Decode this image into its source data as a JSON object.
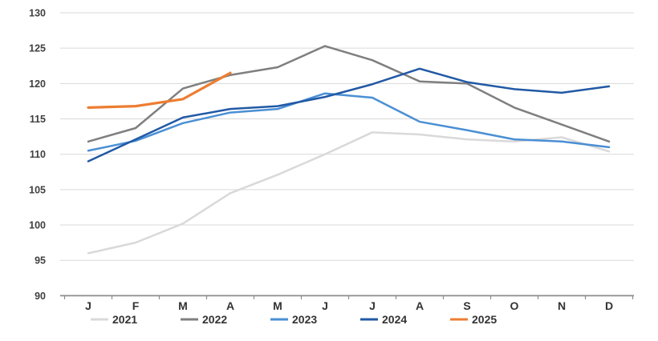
{
  "chart_data": {
    "type": "line",
    "title": "",
    "xlabel": "",
    "ylabel": "",
    "x_categories": [
      "J",
      "F",
      "M",
      "A",
      "M",
      "J",
      "J",
      "A",
      "S",
      "O",
      "N",
      "D"
    ],
    "y_ticks": [
      90,
      95,
      100,
      105,
      110,
      115,
      120,
      125,
      130
    ],
    "ylim": [
      90,
      130
    ],
    "grid": "horizontal",
    "legend_position": "bottom",
    "series": [
      {
        "name": "2021",
        "color": "#d9d9d9",
        "values": [
          96.0,
          97.5,
          100.2,
          104.5,
          107.1,
          110.0,
          113.1,
          112.8,
          112.1,
          111.8,
          112.4,
          110.4
        ]
      },
      {
        "name": "2022",
        "color": "#7f7f7f",
        "values": [
          111.8,
          113.7,
          119.3,
          121.2,
          122.3,
          125.3,
          123.3,
          120.3,
          120.0,
          116.6,
          114.2,
          111.8
        ]
      },
      {
        "name": "2023",
        "color": "#4a8fd4",
        "values": [
          110.5,
          111.9,
          114.4,
          115.9,
          116.4,
          118.6,
          118.0,
          114.6,
          113.4,
          112.1,
          111.8,
          111.0
        ]
      },
      {
        "name": "2024",
        "color": "#2159a5",
        "values": [
          109.0,
          112.1,
          115.2,
          116.4,
          116.8,
          118.1,
          119.9,
          122.1,
          120.2,
          119.2,
          118.7,
          119.6
        ]
      },
      {
        "name": "2025",
        "color": "#ed7d31",
        "values": [
          116.6,
          116.8,
          117.8,
          121.5
        ]
      }
    ]
  },
  "style_colors": {
    "gridline": "#d9d9d9",
    "axis_line": "#8c8c8c",
    "tick_label": "#404040"
  }
}
